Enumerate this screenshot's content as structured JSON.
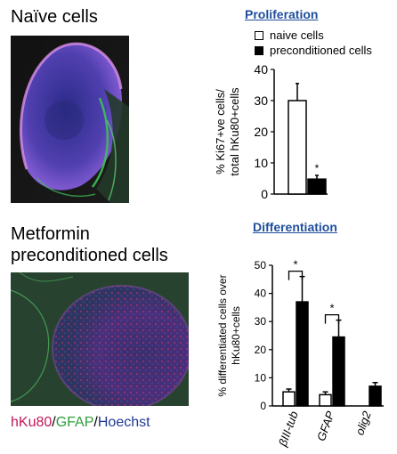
{
  "left": {
    "naive_title": "Naïve cells",
    "metformin_title_line1": "Metformin",
    "metformin_title_line2": "preconditioned cells",
    "stain_caption": {
      "part1": "hKu80",
      "sep1": "/",
      "part2": "GFAP",
      "sep2": "/",
      "part3": "Hoechst",
      "color1": "#c2185b",
      "color2": "#2e9d3c",
      "color3": "#1f3a93"
    }
  },
  "proliferation": {
    "section_title": "Proliferation",
    "legend": [
      {
        "label": "naive cells",
        "fill": "#ffffff"
      },
      {
        "label": "preconditioned cells",
        "fill": "#000000"
      }
    ]
  },
  "differentiation": {
    "section_title": "Differentiation"
  },
  "chart_data": [
    {
      "type": "bar",
      "title": "Proliferation",
      "ylabel": "% Ki67+ve cells/ total hKu80+cells",
      "ylabel_line1": "% Ki67+ve cells/",
      "ylabel_line2": "total hKu80+cells",
      "ylim": [
        0,
        40
      ],
      "yticks": [
        0,
        10,
        20,
        30,
        40
      ],
      "series": [
        {
          "name": "naive cells",
          "values": [
            30
          ],
          "errors": [
            5.5
          ],
          "fill": "#ffffff"
        },
        {
          "name": "preconditioned cells",
          "values": [
            4.8
          ],
          "errors": [
            1.2
          ],
          "fill": "#000000"
        }
      ],
      "annotations": [
        "*"
      ],
      "legend_position": "top"
    },
    {
      "type": "bar",
      "title": "Differentiation",
      "ylabel": "% differentiated cells over hKu80+cells",
      "ylabel_line1": "% differentiated cells over",
      "ylabel_line2": "hKu80+cells",
      "ylim": [
        0,
        50
      ],
      "yticks": [
        0,
        10,
        20,
        30,
        40,
        50
      ],
      "categories": [
        "βIII-tub",
        "GFAP",
        "olig2"
      ],
      "series": [
        {
          "name": "naive cells",
          "values": [
            5,
            4,
            null
          ],
          "errors": [
            1,
            1,
            null
          ],
          "fill": "#ffffff"
        },
        {
          "name": "preconditioned cells",
          "values": [
            37,
            24.5,
            7
          ],
          "errors": [
            9,
            6,
            1.3
          ],
          "fill": "#000000"
        }
      ],
      "significance": [
        "*",
        "*",
        ""
      ]
    }
  ]
}
